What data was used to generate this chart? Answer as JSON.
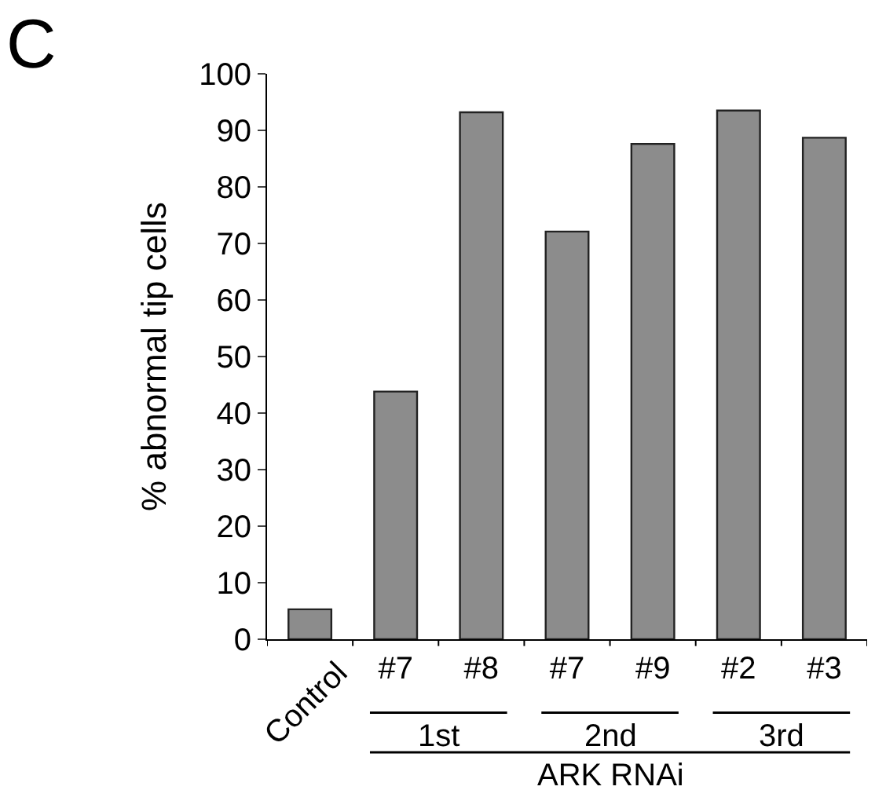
{
  "chart_data": {
    "type": "bar",
    "ylabel": "% abnormal tip cells",
    "categories": [
      "Control",
      "#7",
      "#8",
      "#7",
      "#9",
      "#2",
      "#3"
    ],
    "values": [
      5.3,
      43.8,
      93.2,
      72.1,
      87.6,
      93.5,
      88.7
    ],
    "color": "#8c8c8c",
    "ylim": [
      0,
      100
    ],
    "yticks": [
      0,
      10,
      20,
      30,
      40,
      50,
      60,
      70,
      80,
      90,
      100
    ],
    "annotations": [
      "C",
      "1st",
      "2nd",
      "3rd",
      "ARK RNAi"
    ]
  }
}
